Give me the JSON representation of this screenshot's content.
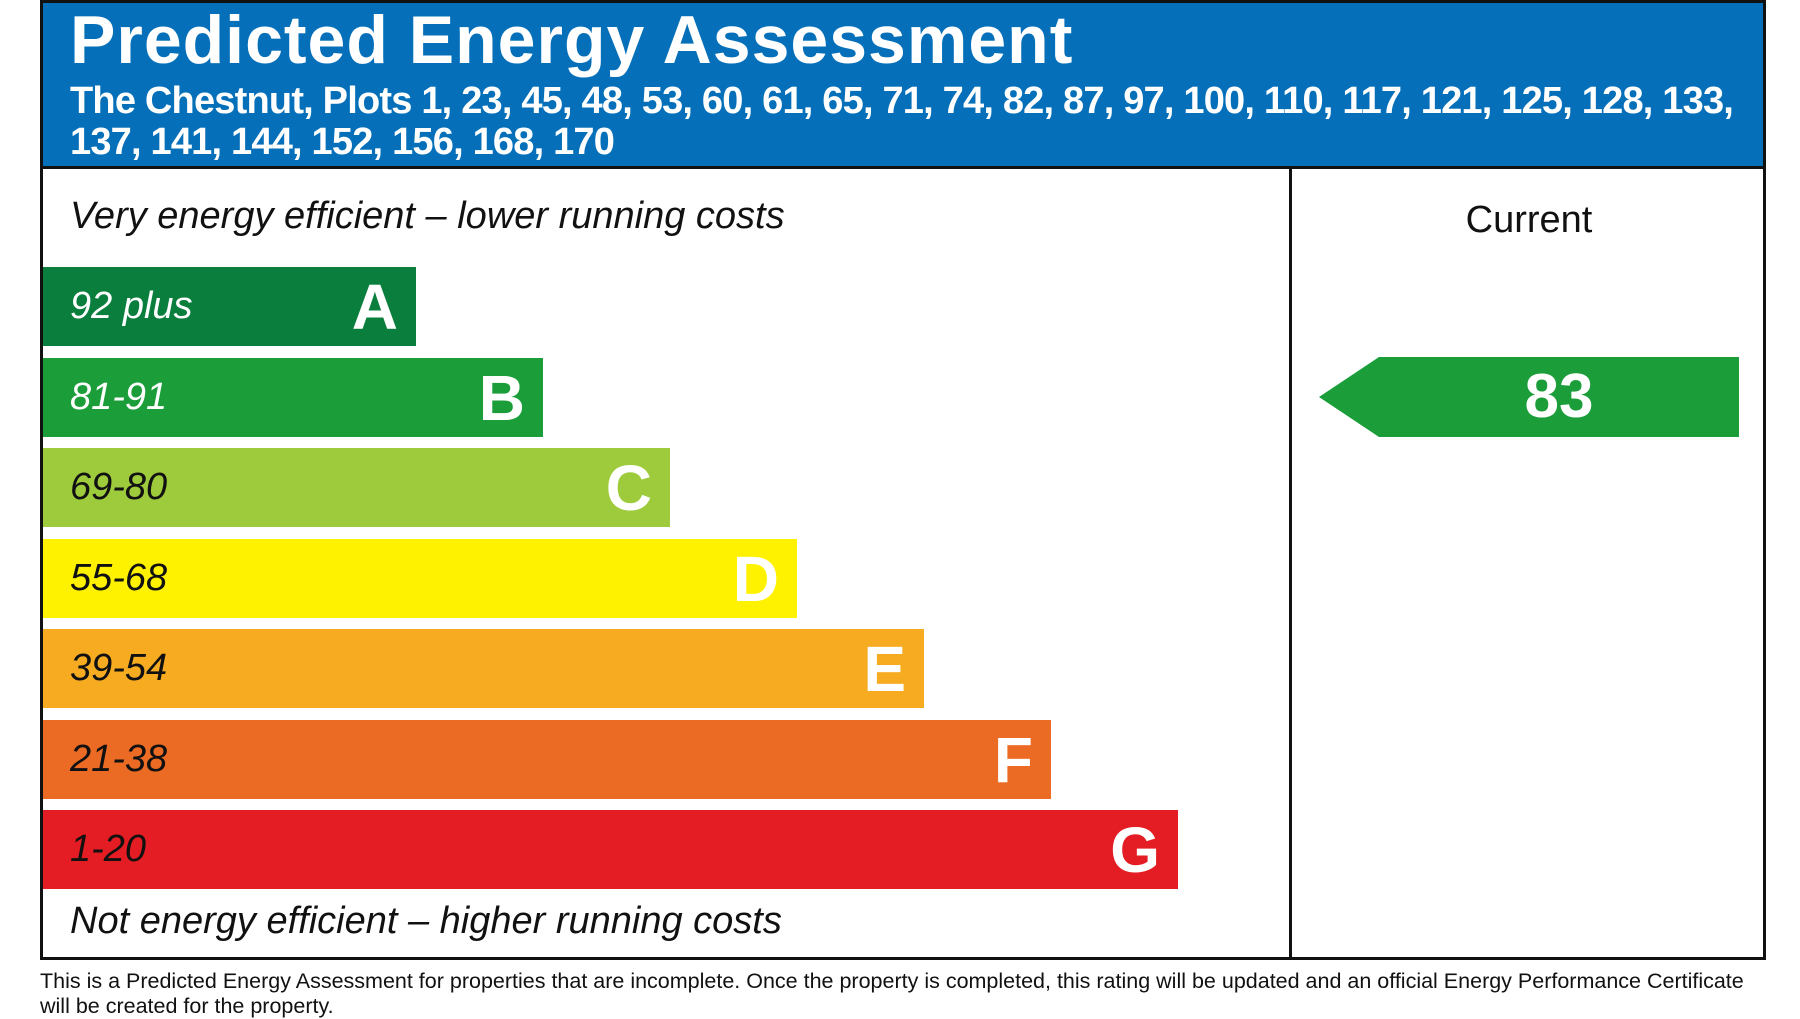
{
  "header": {
    "title": "Predicted Energy Assessment",
    "subtitle": "The Chestnut, Plots 1, 23, 45, 48, 53, 60, 61, 65, 71, 74, 82, 87, 97, 100, 110, 117, 121, 125, 128, 133, 137, 141, 144, 152, 156, 168, 170",
    "background_color": "#0570b9"
  },
  "scale": {
    "top_caption": "Very energy efficient – lower running costs",
    "bottom_caption": "Not energy efficient – higher running costs",
    "bands": [
      {
        "letter": "A",
        "range": "92 plus",
        "color": "#0a7f3d",
        "range_text_color": "#ffffff"
      },
      {
        "letter": "B",
        "range": "81-91",
        "color": "#1b9e3a",
        "range_text_color": "#ffffff"
      },
      {
        "letter": "C",
        "range": "69-80",
        "color": "#9dcb3b",
        "range_text_color": "#111111"
      },
      {
        "letter": "D",
        "range": "55-68",
        "color": "#fff200",
        "range_text_color": "#111111"
      },
      {
        "letter": "E",
        "range": "39-54",
        "color": "#f7ab21",
        "range_text_color": "#111111"
      },
      {
        "letter": "F",
        "range": "21-38",
        "color": "#ec6b24",
        "range_text_color": "#111111"
      },
      {
        "letter": "G",
        "range": "1-20",
        "color": "#e31d23",
        "range_text_color": "#111111"
      }
    ]
  },
  "current": {
    "label": "Current",
    "rating": "83",
    "band": "B",
    "arrow_color": "#1b9e3a"
  },
  "footnote": "This is a Predicted Energy Assessment for properties that are incomplete. Once the property is completed, this rating will be updated and an official Energy Performance Certificate will be created for the property."
}
